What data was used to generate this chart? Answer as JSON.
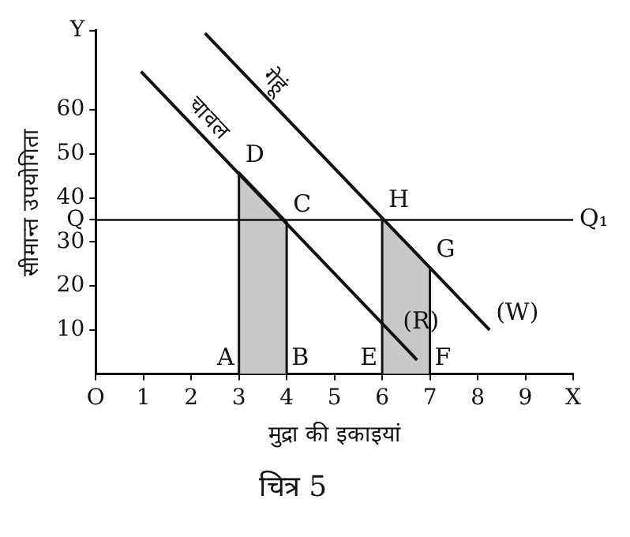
{
  "chart_data": {
    "type": "line",
    "title": "चित्र 5",
    "xlabel": "मुद्रा की इकाइयां",
    "ylabel": "सीमान्त उपयोगिता",
    "xlim": [
      0,
      10
    ],
    "ylim": [
      0,
      78
    ],
    "xticks": [
      {
        "value": 0,
        "label": "O"
      },
      1,
      2,
      3,
      4,
      5,
      6,
      7,
      8,
      9,
      {
        "value": 10,
        "label": "X"
      }
    ],
    "yticks": [
      10,
      20,
      30,
      {
        "value": 35,
        "label": "Q"
      },
      40,
      50,
      60,
      {
        "value": 78,
        "label": "Y"
      }
    ],
    "grid": false,
    "legend": false,
    "marker": "none",
    "line_style": "solid",
    "series": [
      {
        "name": "चावल",
        "color": "#111111",
        "x": [
          0.95,
          6.73
        ],
        "values": [
          68.7,
          3.2
        ]
      },
      {
        "name": "गेहूं",
        "color": "#111111",
        "x": [
          2.29,
          8.25
        ],
        "values": [
          77.4,
          10
        ]
      },
      {
        "type": "area",
        "color": "#c8c8c8",
        "x": [
          3,
          3,
          4,
          4
        ],
        "values": [
          0,
          45.8,
          34.5,
          0
        ]
      },
      {
        "type": "area",
        "color": "#c8c8c8",
        "x": [
          6,
          6,
          7,
          7
        ],
        "values": [
          0,
          35.5,
          24.2,
          0
        ]
      }
    ],
    "ref_lines": [
      {
        "axis": "y",
        "value": 35,
        "label": "Q₁",
        "color": "#111111"
      }
    ],
    "annotations": [
      {
        "text": "D",
        "x": 3,
        "y": 45.8
      },
      {
        "text": "C",
        "x": 4,
        "y": 34.5
      },
      {
        "text": "H",
        "x": 6,
        "y": 35.5
      },
      {
        "text": "G",
        "x": 7,
        "y": 24.2
      },
      {
        "text": "(R)",
        "x": 6.3,
        "y": 8
      },
      {
        "text": "(W)",
        "x": 8.25,
        "y": 10
      },
      {
        "text": "A",
        "x": 3,
        "y": 0
      },
      {
        "text": "B",
        "x": 4,
        "y": 0
      },
      {
        "text": "E",
        "x": 6,
        "y": 0
      },
      {
        "text": "F",
        "x": 7,
        "y": 0
      }
    ]
  }
}
